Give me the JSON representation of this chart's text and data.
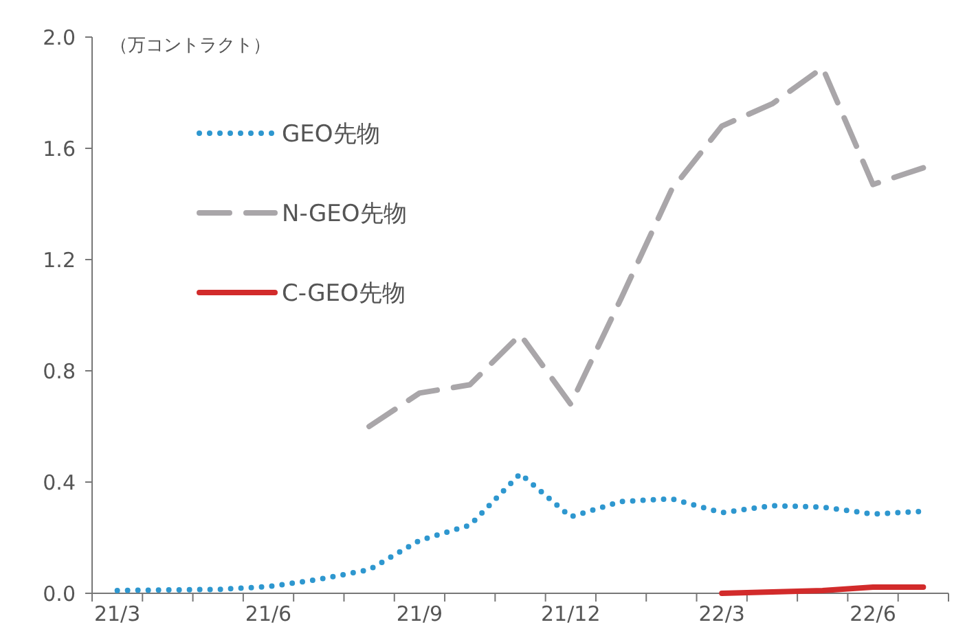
{
  "chart_data": {
    "type": "line",
    "ylabel": "（万コントラクト）",
    "categories": [
      "21/3",
      null,
      null,
      "21/6",
      null,
      null,
      "21/9",
      null,
      null,
      "21/12",
      null,
      null,
      "22/3",
      null,
      null,
      "22/6",
      null
    ],
    "ylim": [
      0,
      2.0
    ],
    "yticks": [
      {
        "value": 0,
        "label": "0.0"
      },
      {
        "value": 0.4,
        "label": "0.4"
      },
      {
        "value": 0.8,
        "label": "0.8"
      },
      {
        "value": 1.2,
        "label": "1.2"
      },
      {
        "value": 1.6,
        "label": "1.6"
      },
      {
        "value": 2.0,
        "label": "2.0"
      }
    ],
    "legend": "top left",
    "grid": false,
    "series": [
      {
        "name": "GEO先物",
        "color": "#2e97cf",
        "line_style": "dotted",
        "values": [
          0.01,
          0.012,
          0.014,
          0.024,
          0.05,
          0.085,
          0.19,
          0.245,
          0.43,
          0.275,
          0.33,
          0.34,
          0.29,
          0.315,
          0.31,
          0.285,
          0.295
        ]
      },
      {
        "name": "N-GEO先物",
        "color": "#a9a6a9",
        "line_style": "dashed",
        "values": [
          null,
          null,
          null,
          null,
          null,
          0.6,
          0.72,
          0.75,
          0.93,
          0.68,
          1.06,
          1.45,
          1.68,
          1.76,
          1.89,
          1.47,
          1.53
        ]
      },
      {
        "name": "C-GEO先物",
        "color": "#d22b2b",
        "line_style": "solid",
        "values": [
          null,
          null,
          null,
          null,
          null,
          null,
          null,
          null,
          null,
          null,
          null,
          null,
          0.0,
          0.005,
          0.01,
          0.022,
          0.022
        ]
      }
    ]
  }
}
